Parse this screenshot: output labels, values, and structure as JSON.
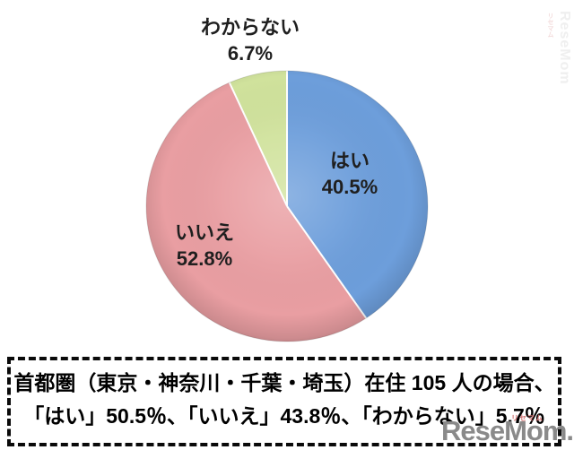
{
  "chart_data": {
    "type": "pie",
    "title": "",
    "labels": [
      "はい",
      "いいえ",
      "わからない"
    ],
    "values": [
      40.5,
      52.8,
      6.7
    ],
    "pct_labels": [
      "40.5%",
      "52.8%",
      "6.7%"
    ],
    "colors": [
      "#6d9edb",
      "#e99ea2",
      "#d0e29c"
    ],
    "slice_separator_color": "#ffffff",
    "start_angle": "top",
    "direction": "clockwise",
    "legend": "none",
    "label_placement": "はい and いいえ inside slices, わからない outside above pie"
  },
  "caption": {
    "line1": "首都圏（東京・神奈川・千葉・埼玉）在住 105 人の場合、",
    "line2": "「はい」50.5％、「いいえ」43.8％、「わからない」5.7％"
  },
  "watermark": {
    "main": "ReseMom.",
    "main_color": "#8a8a8a",
    "sub": "リセマム",
    "sub_color": "#cf6f6f",
    "side": "ReseMom",
    "side_sub": "リセマム"
  }
}
